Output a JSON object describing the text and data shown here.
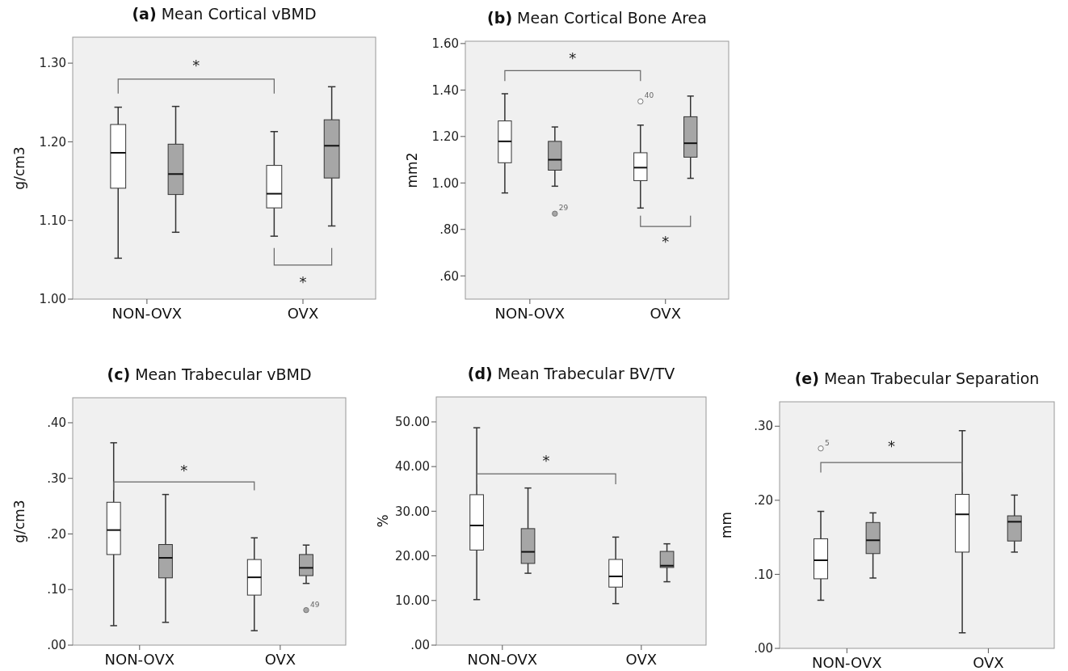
{
  "chart_data": [
    {
      "type": "box",
      "title": "(a) Mean Cortical vBMD",
      "ylabel": "g/cm3",
      "categories": [
        "NON-OVX",
        "OVX"
      ],
      "ylim": [
        1.0,
        1.333
      ],
      "yticks": [
        {
          "value": 1,
          "label": "1.00"
        },
        {
          "value": 1.1,
          "label": "1.10"
        },
        {
          "value": 1.2,
          "label": "1.20"
        },
        {
          "value": 1.3,
          "label": "1.30"
        }
      ],
      "series": [
        {
          "color": "#ffffff",
          "boxes": [
            {
              "low": 1.052,
              "q1": 1.141,
              "median": 1.186,
              "q3": 1.222,
              "high": 1.244
            },
            {
              "low": 1.08,
              "q1": 1.116,
              "median": 1.134,
              "q3": 1.17,
              "high": 1.213
            }
          ]
        },
        {
          "color": "#a6a6a6",
          "boxes": [
            {
              "low": 1.085,
              "q1": 1.133,
              "median": 1.159,
              "q3": 1.197,
              "high": 1.245
            },
            {
              "low": 1.093,
              "q1": 1.154,
              "median": 1.195,
              "q3": 1.228,
              "high": 1.27
            }
          ]
        }
      ],
      "annotations": [
        "*",
        "*"
      ]
    },
    {
      "type": "box",
      "title": "(b) Mean Cortical Bone Area",
      "ylabel": "mm2",
      "categories": [
        "NON-OVX",
        "OVX"
      ],
      "ylim": [
        0.5,
        1.61
      ],
      "yticks": [
        {
          "value": 0.6,
          "label": ".60"
        },
        {
          "value": 0.8,
          "label": ".80"
        },
        {
          "value": 1,
          "label": "1.00"
        },
        {
          "value": 1.2,
          "label": "1.20"
        },
        {
          "value": 1.4,
          "label": "1.40"
        },
        {
          "value": 1.6,
          "label": "1.60"
        }
      ],
      "series": [
        {
          "color": "#ffffff",
          "boxes": [
            {
              "low": 0.957,
              "q1": 1.087,
              "median": 1.179,
              "q3": 1.267,
              "high": 1.384
            },
            {
              "low": 0.892,
              "q1": 1.01,
              "median": 1.066,
              "q3": 1.13,
              "high": 1.249,
              "outliers": [
                1.351
              ]
            }
          ]
        },
        {
          "color": "#a6a6a6",
          "boxes": [
            {
              "low": 0.986,
              "q1": 1.055,
              "median": 1.1,
              "q3": 1.179,
              "high": 1.241,
              "outliers": [
                0.868
              ]
            },
            {
              "low": 1.02,
              "q1": 1.111,
              "median": 1.171,
              "q3": 1.285,
              "high": 1.374
            }
          ]
        }
      ],
      "annotations": [
        "*",
        "*",
        "40",
        "29"
      ]
    },
    {
      "type": "box",
      "title": "(c) Mean Trabecular vBMD",
      "ylabel": "g/cm3",
      "categories": [
        "NON-OVX",
        "OVX"
      ],
      "ylim": [
        0,
        0.445
      ],
      "yticks": [
        {
          "value": 0,
          "label": ".00"
        },
        {
          "value": 0.1,
          "label": ".10"
        },
        {
          "value": 0.2,
          "label": ".20"
        },
        {
          "value": 0.3,
          "label": ".30"
        },
        {
          "value": 0.4,
          "label": ".40"
        }
      ],
      "series": [
        {
          "color": "#ffffff",
          "boxes": [
            {
              "low": 0.035,
              "q1": 0.163,
              "median": 0.207,
              "q3": 0.257,
              "high": 0.364
            },
            {
              "low": 0.026,
              "q1": 0.09,
              "median": 0.122,
              "q3": 0.154,
              "high": 0.193
            }
          ]
        },
        {
          "color": "#a6a6a6",
          "boxes": [
            {
              "low": 0.041,
              "q1": 0.121,
              "median": 0.157,
              "q3": 0.181,
              "high": 0.271
            },
            {
              "low": 0.111,
              "q1": 0.125,
              "median": 0.139,
              "q3": 0.163,
              "high": 0.18,
              "outliers": [
                0.063
              ]
            }
          ]
        }
      ],
      "annotations": [
        "*",
        "49"
      ]
    },
    {
      "type": "box",
      "title": "(d) Mean Trabecular BV/TV",
      "ylabel": "%",
      "categories": [
        "NON-OVX",
        "OVX"
      ],
      "ylim": [
        0,
        55.6
      ],
      "yticks": [
        {
          "value": 0,
          "label": ".00"
        },
        {
          "value": 10,
          "label": "10.00"
        },
        {
          "value": 20,
          "label": "20.00"
        },
        {
          "value": 30,
          "label": "30.00"
        },
        {
          "value": 40,
          "label": "40.00"
        },
        {
          "value": 50,
          "label": "50.00"
        }
      ],
      "series": [
        {
          "color": "#ffffff",
          "boxes": [
            {
              "low": 10.2,
              "q1": 21.3,
              "median": 26.8,
              "q3": 33.7,
              "high": 48.7
            },
            {
              "low": 9.3,
              "q1": 13.0,
              "median": 15.4,
              "q3": 19.2,
              "high": 24.2
            }
          ]
        },
        {
          "color": "#a6a6a6",
          "boxes": [
            {
              "low": 16.1,
              "q1": 18.3,
              "median": 20.9,
              "q3": 26.1,
              "high": 35.2
            },
            {
              "low": 14.2,
              "q1": 17.4,
              "median": 17.8,
              "q3": 21.0,
              "high": 22.7
            }
          ]
        }
      ],
      "annotations": [
        "*"
      ]
    },
    {
      "type": "box",
      "title": "(e) Mean Trabecular Separation",
      "ylabel": "mm",
      "categories": [
        "NON-OVX",
        "OVX"
      ],
      "ylim": [
        0,
        0.333
      ],
      "yticks": [
        {
          "value": 0,
          "label": ".00"
        },
        {
          "value": 0.1,
          "label": ".10"
        },
        {
          "value": 0.2,
          "label": ".20"
        },
        {
          "value": 0.3,
          "label": ".30"
        }
      ],
      "series": [
        {
          "color": "#ffffff",
          "boxes": [
            {
              "low": 0.065,
              "q1": 0.094,
              "median": 0.119,
              "q3": 0.148,
              "high": 0.185,
              "outliers": [
                0.27
              ]
            },
            {
              "low": 0.021,
              "q1": 0.13,
              "median": 0.181,
              "q3": 0.208,
              "high": 0.294
            }
          ]
        },
        {
          "color": "#a6a6a6",
          "boxes": [
            {
              "low": 0.095,
              "q1": 0.128,
              "median": 0.146,
              "q3": 0.17,
              "high": 0.183
            },
            {
              "low": 0.13,
              "q1": 0.145,
              "median": 0.171,
              "q3": 0.179,
              "high": 0.207
            }
          ]
        }
      ],
      "annotations": [
        "*",
        "5"
      ]
    }
  ]
}
